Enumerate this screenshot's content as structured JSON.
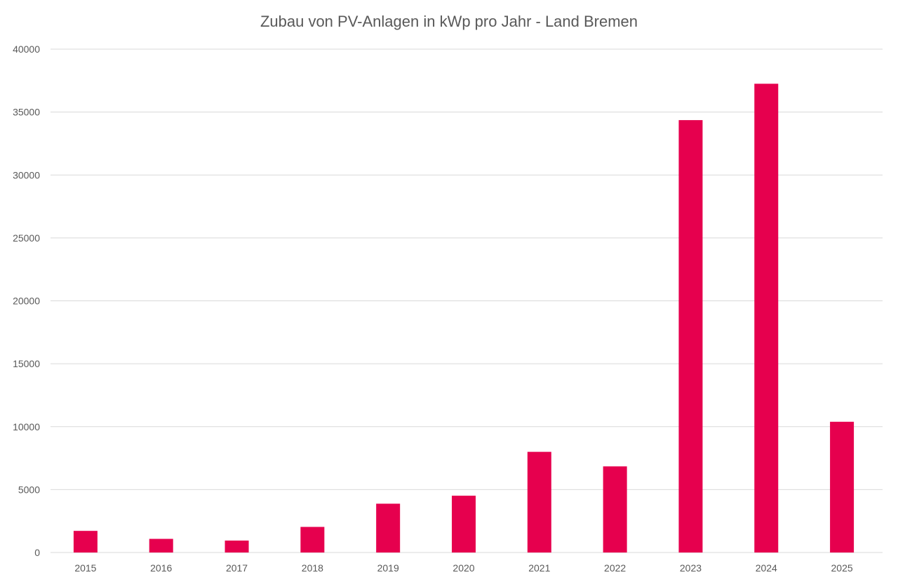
{
  "chart_data": {
    "type": "bar",
    "title": "Zubau von PV-Anlagen in kWp pro Jahr - Land Bremen",
    "categories": [
      "2015",
      "2016",
      "2017",
      "2018",
      "2019",
      "2020",
      "2021",
      "2022",
      "2023",
      "2024",
      "2025"
    ],
    "values": [
      1720,
      1085,
      950,
      2035,
      3880,
      4515,
      8000,
      6845,
      34360,
      37250,
      10390
    ],
    "xlabel": "",
    "ylabel": "",
    "ylim": [
      0,
      40000
    ],
    "yticks": [
      0,
      5000,
      10000,
      15000,
      20000,
      25000,
      30000,
      35000,
      40000
    ],
    "grid": true,
    "legend": "none",
    "bar_color": "#E6004E",
    "grid_color": "#D9D9D9"
  }
}
